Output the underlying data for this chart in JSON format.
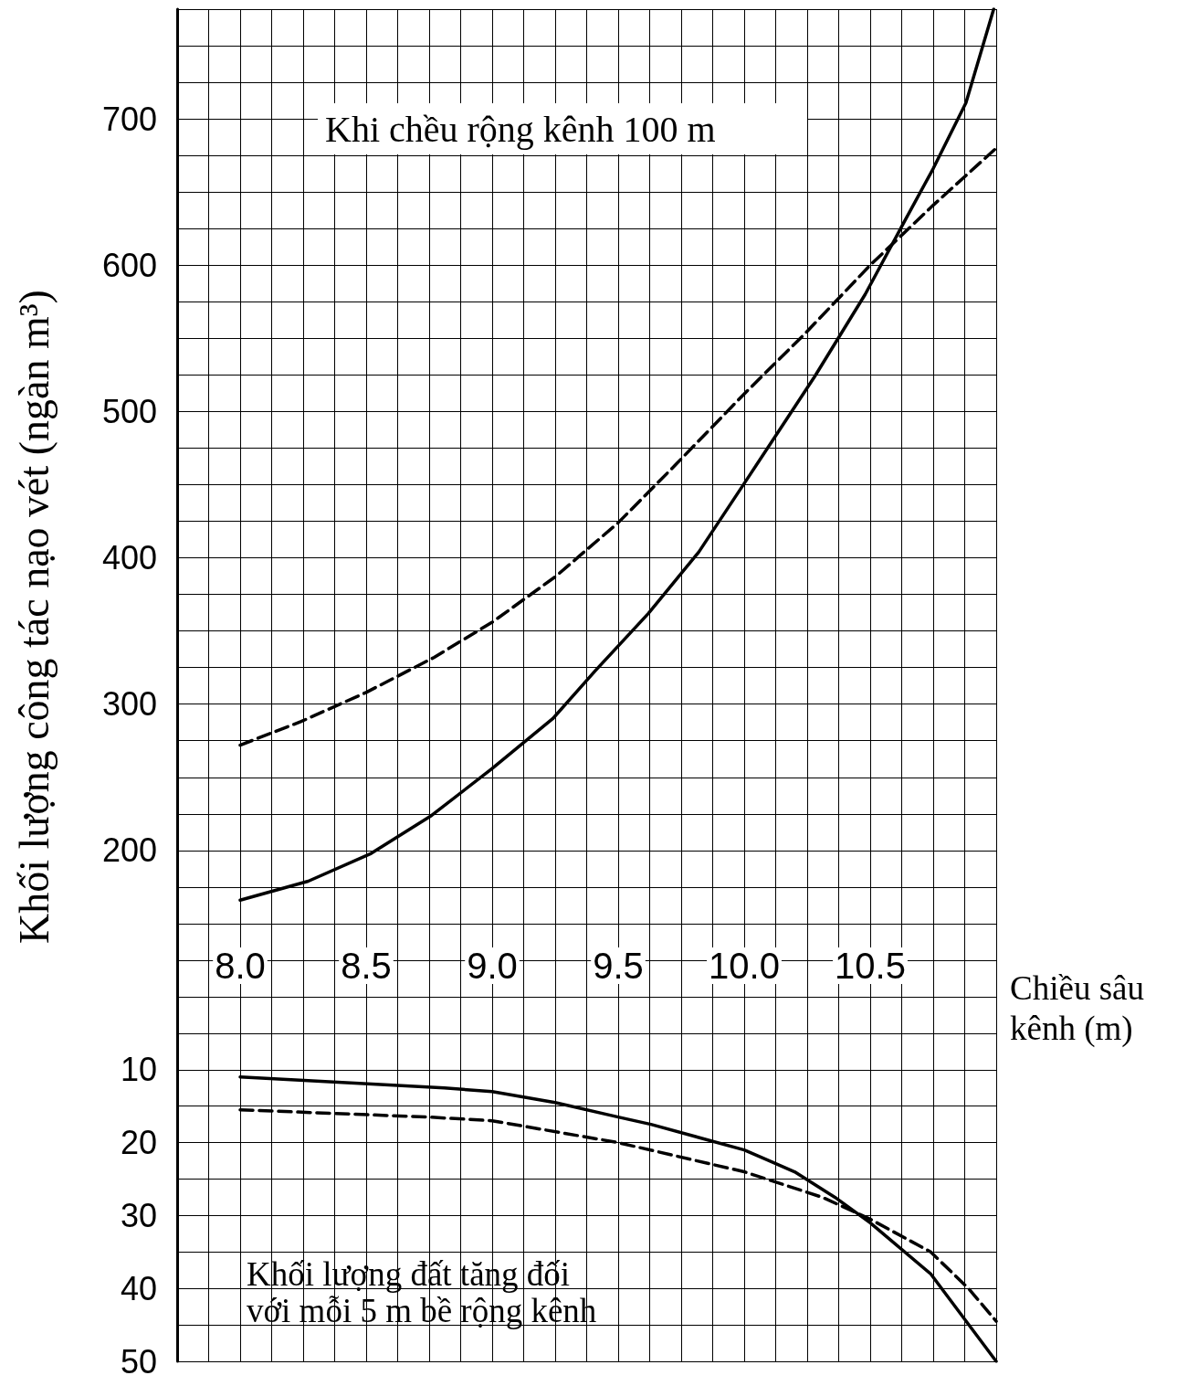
{
  "chart_data": [
    {
      "type": "line",
      "ylabel": "Khối lượng công tác nạo vét (ngàn m³)",
      "xlabel": "Chiều sâu kênh (m)",
      "annotations": [
        "Khi chều rộng kênh 100 m"
      ],
      "grid": true,
      "xlim": [
        7.75,
        11.0
      ],
      "xticks": [
        {
          "value": 7.75,
          "label": null
        },
        {
          "value": 7.875,
          "label": null
        },
        {
          "value": 8,
          "label": "8.0"
        },
        {
          "value": 8.125,
          "label": null
        },
        {
          "value": 8.25,
          "label": null
        },
        {
          "value": 8.375,
          "label": null
        },
        {
          "value": 8.5,
          "label": "8.5"
        },
        {
          "value": 8.625,
          "label": null
        },
        {
          "value": 8.75,
          "label": null
        },
        {
          "value": 8.875,
          "label": null
        },
        {
          "value": 9,
          "label": "9.0"
        },
        {
          "value": 9.125,
          "label": null
        },
        {
          "value": 9.25,
          "label": null
        },
        {
          "value": 9.375,
          "label": null
        },
        {
          "value": 9.5,
          "label": "9.5"
        },
        {
          "value": 9.625,
          "label": null
        },
        {
          "value": 9.75,
          "label": null
        },
        {
          "value": 9.875,
          "label": null
        },
        {
          "value": 10,
          "label": "10.0"
        },
        {
          "value": 10.125,
          "label": null
        },
        {
          "value": 10.25,
          "label": null
        },
        {
          "value": 10.375,
          "label": null
        },
        {
          "value": 10.5,
          "label": "10.5"
        },
        {
          "value": 10.625,
          "label": null
        },
        {
          "value": 10.75,
          "label": null
        },
        {
          "value": 10.875,
          "label": null
        },
        {
          "value": 11,
          "label": null
        }
      ],
      "ylim": [
        100,
        775
      ],
      "yticks": [
        {
          "value": 125,
          "label": null
        },
        {
          "value": 150,
          "label": null
        },
        {
          "value": 175,
          "label": null
        },
        200,
        {
          "value": 225,
          "label": null
        },
        {
          "value": 250,
          "label": null
        },
        {
          "value": 275,
          "label": null
        },
        300,
        {
          "value": 325,
          "label": null
        },
        {
          "value": 350,
          "label": null
        },
        {
          "value": 375,
          "label": null
        },
        400,
        {
          "value": 425,
          "label": null
        },
        {
          "value": 450,
          "label": null
        },
        {
          "value": 475,
          "label": null
        },
        500,
        {
          "value": 525,
          "label": null
        },
        {
          "value": 550,
          "label": null
        },
        {
          "value": 575,
          "label": null
        },
        600,
        {
          "value": 625,
          "label": null
        },
        {
          "value": 650,
          "label": null
        },
        {
          "value": 675,
          "label": null
        },
        700,
        {
          "value": 725,
          "label": null
        },
        {
          "value": 750,
          "label": null
        },
        {
          "value": 775,
          "label": null
        }
      ],
      "series": [
        {
          "color": "#000000",
          "line_style": "solid",
          "x": [
            8.0,
            8.27,
            8.52,
            8.76,
            9.0,
            9.24,
            9.41,
            9.62,
            9.82,
            10.02,
            10.15,
            10.28,
            10.48,
            10.63,
            10.75,
            10.88,
            10.99
          ],
          "values": [
            166,
            179,
            198,
            224,
            256,
            290,
            323,
            362,
            404,
            456,
            490,
            524,
            580,
            628,
            666,
            711,
            775
          ]
        },
        {
          "color": "#000000",
          "line_style": "dashed",
          "x": [
            8.0,
            8.24,
            8.5,
            8.77,
            9.0,
            9.25,
            9.5,
            9.73,
            10.0,
            10.24,
            10.5,
            10.75,
            11.0
          ],
          "values": [
            272,
            288,
            308,
            332,
            356,
            387,
            424,
            464,
            512,
            553,
            600,
            641,
            680
          ]
        }
      ]
    },
    {
      "type": "line",
      "annotations": [
        "Khối lượng đất tăng đối với mỗi 5 m bề rộng kênh"
      ],
      "grid": true,
      "tick_labels": "y",
      "xlim": [
        7.75,
        11.0
      ],
      "xticks": [
        {
          "value": 7.75,
          "label": null
        },
        {
          "value": 7.875,
          "label": null
        },
        {
          "value": 8,
          "label": null
        },
        {
          "value": 8.125,
          "label": null
        },
        {
          "value": 8.25,
          "label": null
        },
        {
          "value": 8.375,
          "label": null
        },
        {
          "value": 8.5,
          "label": null
        },
        {
          "value": 8.625,
          "label": null
        },
        {
          "value": 8.75,
          "label": null
        },
        {
          "value": 8.875,
          "label": null
        },
        {
          "value": 9,
          "label": null
        },
        {
          "value": 9.125,
          "label": null
        },
        {
          "value": 9.25,
          "label": null
        },
        {
          "value": 9.375,
          "label": null
        },
        {
          "value": 9.5,
          "label": null
        },
        {
          "value": 9.625,
          "label": null
        },
        {
          "value": 9.75,
          "label": null
        },
        {
          "value": 9.875,
          "label": null
        },
        {
          "value": 10,
          "label": null
        },
        {
          "value": 10.125,
          "label": null
        },
        {
          "value": 10.25,
          "label": null
        },
        {
          "value": 10.375,
          "label": null
        },
        {
          "value": 10.5,
          "label": null
        },
        {
          "value": 10.625,
          "label": null
        },
        {
          "value": 10.75,
          "label": null
        },
        {
          "value": 10.875,
          "label": null
        },
        {
          "value": 11,
          "label": null
        }
      ],
      "ylim": [
        50,
        0
      ],
      "yticks": [
        {
          "value": 0,
          "label": null
        },
        {
          "value": 5,
          "label": null
        },
        10,
        {
          "value": 15,
          "label": null
        },
        20,
        {
          "value": 25,
          "label": null
        },
        30,
        {
          "value": 35,
          "label": null
        },
        40,
        {
          "value": 45,
          "label": null
        },
        50
      ],
      "series": [
        {
          "color": "#000000",
          "line_style": "solid",
          "x": [
            8.0,
            8.81,
            9.0,
            9.25,
            9.5,
            9.63,
            10.0,
            10.2,
            10.36,
            10.5,
            10.74,
            11.0
          ],
          "values": [
            11,
            12.5,
            13,
            14.5,
            16.5,
            17.5,
            21,
            24,
            27.5,
            31,
            38,
            50
          ]
        },
        {
          "color": "#000000",
          "line_style": "dashed",
          "x": [
            8.0,
            8.75,
            9.0,
            9.5,
            10.0,
            10.31,
            10.5,
            10.74,
            10.89,
            11.0
          ],
          "values": [
            15.5,
            16.5,
            17,
            20,
            24,
            27.5,
            30.5,
            35,
            40,
            44.5
          ]
        }
      ]
    }
  ]
}
